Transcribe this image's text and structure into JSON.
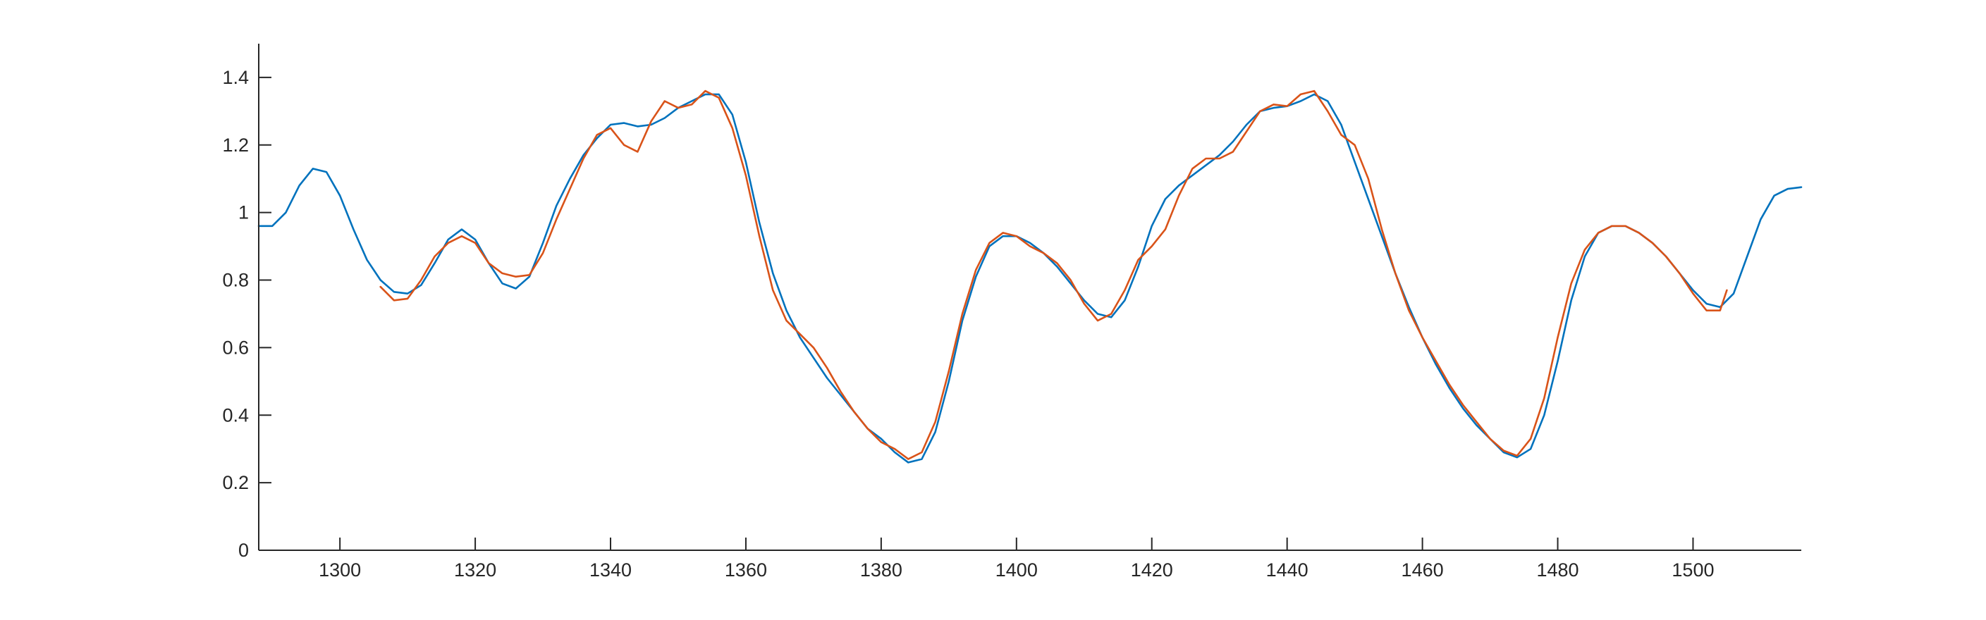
{
  "chart_data": {
    "type": "line",
    "title": "",
    "xlabel": "",
    "ylabel": "",
    "xlim": [
      1288,
      1516
    ],
    "ylim": [
      0,
      1.5
    ],
    "x_ticks": [
      1300,
      1320,
      1340,
      1360,
      1380,
      1400,
      1420,
      1440,
      1460,
      1480,
      1500
    ],
    "y_ticks": [
      0,
      0.2,
      0.4,
      0.6,
      0.8,
      1,
      1.2,
      1.4
    ],
    "y_tick_labels": [
      "0",
      "0.2",
      "0.4",
      "0.6",
      "0.8",
      "1",
      "1.2",
      "1.4"
    ],
    "grid": false,
    "box": false,
    "series": [
      {
        "color": "#0072BD",
        "points": [
          [
            1288,
            0.96
          ],
          [
            1290,
            0.96
          ],
          [
            1292,
            1.0
          ],
          [
            1294,
            1.08
          ],
          [
            1296,
            1.13
          ],
          [
            1298,
            1.12
          ],
          [
            1300,
            1.05
          ],
          [
            1302,
            0.95
          ],
          [
            1304,
            0.86
          ],
          [
            1306,
            0.8
          ],
          [
            1308,
            0.765
          ],
          [
            1310,
            0.76
          ],
          [
            1312,
            0.785
          ],
          [
            1314,
            0.85
          ],
          [
            1316,
            0.92
          ],
          [
            1318,
            0.95
          ],
          [
            1320,
            0.92
          ],
          [
            1322,
            0.85
          ],
          [
            1324,
            0.79
          ],
          [
            1326,
            0.775
          ],
          [
            1328,
            0.81
          ],
          [
            1330,
            0.91
          ],
          [
            1332,
            1.02
          ],
          [
            1334,
            1.1
          ],
          [
            1336,
            1.17
          ],
          [
            1338,
            1.22
          ],
          [
            1340,
            1.26
          ],
          [
            1342,
            1.265
          ],
          [
            1344,
            1.255
          ],
          [
            1346,
            1.26
          ],
          [
            1348,
            1.28
          ],
          [
            1350,
            1.31
          ],
          [
            1352,
            1.33
          ],
          [
            1354,
            1.35
          ],
          [
            1356,
            1.35
          ],
          [
            1358,
            1.29
          ],
          [
            1360,
            1.15
          ],
          [
            1362,
            0.97
          ],
          [
            1364,
            0.82
          ],
          [
            1366,
            0.71
          ],
          [
            1368,
            0.63
          ],
          [
            1370,
            0.57
          ],
          [
            1372,
            0.51
          ],
          [
            1374,
            0.46
          ],
          [
            1376,
            0.41
          ],
          [
            1378,
            0.36
          ],
          [
            1380,
            0.33
          ],
          [
            1382,
            0.29
          ],
          [
            1384,
            0.26
          ],
          [
            1386,
            0.27
          ],
          [
            1388,
            0.35
          ],
          [
            1390,
            0.5
          ],
          [
            1392,
            0.68
          ],
          [
            1394,
            0.81
          ],
          [
            1396,
            0.9
          ],
          [
            1398,
            0.93
          ],
          [
            1400,
            0.93
          ],
          [
            1402,
            0.91
          ],
          [
            1404,
            0.88
          ],
          [
            1406,
            0.84
          ],
          [
            1408,
            0.79
          ],
          [
            1410,
            0.74
          ],
          [
            1412,
            0.7
          ],
          [
            1414,
            0.69
          ],
          [
            1416,
            0.74
          ],
          [
            1418,
            0.84
          ],
          [
            1420,
            0.96
          ],
          [
            1422,
            1.04
          ],
          [
            1424,
            1.08
          ],
          [
            1426,
            1.11
          ],
          [
            1428,
            1.14
          ],
          [
            1430,
            1.17
          ],
          [
            1432,
            1.21
          ],
          [
            1434,
            1.26
          ],
          [
            1436,
            1.3
          ],
          [
            1438,
            1.31
          ],
          [
            1440,
            1.315
          ],
          [
            1442,
            1.33
          ],
          [
            1444,
            1.35
          ],
          [
            1446,
            1.33
          ],
          [
            1448,
            1.26
          ],
          [
            1450,
            1.15
          ],
          [
            1452,
            1.04
          ],
          [
            1454,
            0.93
          ],
          [
            1456,
            0.82
          ],
          [
            1458,
            0.72
          ],
          [
            1460,
            0.63
          ],
          [
            1462,
            0.55
          ],
          [
            1464,
            0.48
          ],
          [
            1466,
            0.42
          ],
          [
            1468,
            0.37
          ],
          [
            1470,
            0.33
          ],
          [
            1472,
            0.29
          ],
          [
            1474,
            0.275
          ],
          [
            1476,
            0.3
          ],
          [
            1478,
            0.4
          ],
          [
            1480,
            0.56
          ],
          [
            1482,
            0.74
          ],
          [
            1484,
            0.87
          ],
          [
            1486,
            0.94
          ],
          [
            1488,
            0.96
          ],
          [
            1490,
            0.96
          ],
          [
            1492,
            0.94
          ],
          [
            1494,
            0.91
          ],
          [
            1496,
            0.87
          ],
          [
            1498,
            0.82
          ],
          [
            1500,
            0.77
          ],
          [
            1502,
            0.73
          ],
          [
            1504,
            0.72
          ],
          [
            1506,
            0.76
          ],
          [
            1508,
            0.87
          ],
          [
            1510,
            0.98
          ],
          [
            1512,
            1.05
          ],
          [
            1514,
            1.07
          ],
          [
            1516,
            1.075
          ]
        ]
      },
      {
        "color": "#D95319",
        "points": [
          [
            1306,
            0.78
          ],
          [
            1308,
            0.74
          ],
          [
            1310,
            0.745
          ],
          [
            1312,
            0.8
          ],
          [
            1314,
            0.87
          ],
          [
            1316,
            0.91
          ],
          [
            1318,
            0.93
          ],
          [
            1320,
            0.91
          ],
          [
            1322,
            0.85
          ],
          [
            1324,
            0.82
          ],
          [
            1326,
            0.81
          ],
          [
            1328,
            0.815
          ],
          [
            1330,
            0.88
          ],
          [
            1332,
            0.98
          ],
          [
            1334,
            1.07
          ],
          [
            1336,
            1.16
          ],
          [
            1338,
            1.23
          ],
          [
            1340,
            1.25
          ],
          [
            1342,
            1.2
          ],
          [
            1344,
            1.18
          ],
          [
            1346,
            1.27
          ],
          [
            1348,
            1.33
          ],
          [
            1350,
            1.31
          ],
          [
            1352,
            1.32
          ],
          [
            1354,
            1.36
          ],
          [
            1356,
            1.34
          ],
          [
            1358,
            1.25
          ],
          [
            1360,
            1.11
          ],
          [
            1362,
            0.93
          ],
          [
            1364,
            0.77
          ],
          [
            1366,
            0.68
          ],
          [
            1368,
            0.64
          ],
          [
            1370,
            0.6
          ],
          [
            1372,
            0.54
          ],
          [
            1374,
            0.47
          ],
          [
            1376,
            0.41
          ],
          [
            1378,
            0.36
          ],
          [
            1380,
            0.32
          ],
          [
            1382,
            0.3
          ],
          [
            1384,
            0.27
          ],
          [
            1386,
            0.29
          ],
          [
            1388,
            0.38
          ],
          [
            1390,
            0.53
          ],
          [
            1392,
            0.7
          ],
          [
            1394,
            0.83
          ],
          [
            1396,
            0.91
          ],
          [
            1398,
            0.94
          ],
          [
            1400,
            0.93
          ],
          [
            1402,
            0.9
          ],
          [
            1404,
            0.88
          ],
          [
            1406,
            0.85
          ],
          [
            1408,
            0.8
          ],
          [
            1410,
            0.73
          ],
          [
            1412,
            0.68
          ],
          [
            1414,
            0.7
          ],
          [
            1416,
            0.77
          ],
          [
            1418,
            0.86
          ],
          [
            1420,
            0.9
          ],
          [
            1422,
            0.95
          ],
          [
            1424,
            1.05
          ],
          [
            1426,
            1.13
          ],
          [
            1428,
            1.16
          ],
          [
            1430,
            1.16
          ],
          [
            1432,
            1.18
          ],
          [
            1434,
            1.24
          ],
          [
            1436,
            1.3
          ],
          [
            1438,
            1.32
          ],
          [
            1440,
            1.315
          ],
          [
            1442,
            1.35
          ],
          [
            1444,
            1.36
          ],
          [
            1446,
            1.3
          ],
          [
            1448,
            1.23
          ],
          [
            1450,
            1.2
          ],
          [
            1452,
            1.1
          ],
          [
            1454,
            0.95
          ],
          [
            1456,
            0.82
          ],
          [
            1458,
            0.71
          ],
          [
            1460,
            0.63
          ],
          [
            1462,
            0.56
          ],
          [
            1464,
            0.49
          ],
          [
            1466,
            0.43
          ],
          [
            1468,
            0.38
          ],
          [
            1470,
            0.33
          ],
          [
            1472,
            0.295
          ],
          [
            1474,
            0.28
          ],
          [
            1476,
            0.33
          ],
          [
            1478,
            0.45
          ],
          [
            1480,
            0.63
          ],
          [
            1482,
            0.79
          ],
          [
            1484,
            0.89
          ],
          [
            1486,
            0.94
          ],
          [
            1488,
            0.96
          ],
          [
            1490,
            0.96
          ],
          [
            1492,
            0.94
          ],
          [
            1494,
            0.91
          ],
          [
            1496,
            0.87
          ],
          [
            1498,
            0.82
          ],
          [
            1500,
            0.76
          ],
          [
            1502,
            0.71
          ],
          [
            1504,
            0.71
          ],
          [
            1505,
            0.77
          ]
        ]
      }
    ]
  }
}
